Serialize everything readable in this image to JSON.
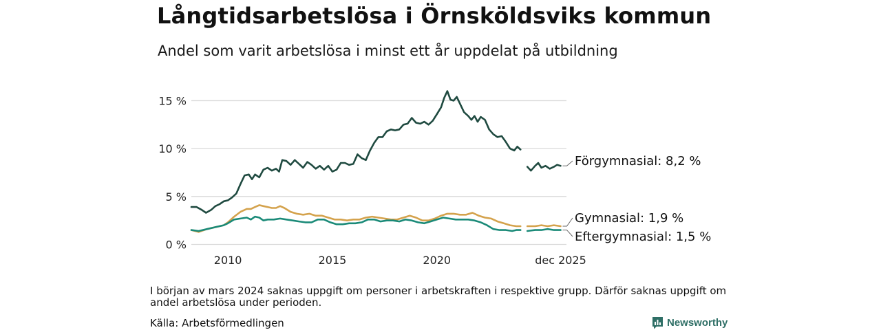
{
  "title": "Långtidsarbetslösa i Örnsköldsviks kommun",
  "subtitle": "Andel som varit arbetslösa i minst ett år uppdelat på utbildning",
  "note": "I början av mars 2024 saknas uppgift om personer i arbetskraften i respektive grupp. Därför saknas uppgift om andel arbetslösa under perioden.",
  "source": "Källa: Arbetsförmedlingen",
  "brand": "Newsworthy",
  "colors": {
    "forgymnasial": "#1f4a40",
    "gymnasial": "#d4a24c",
    "eftergymnasial": "#1a8a78",
    "grid": "#d9d9d9",
    "brand": "#2f6f66"
  },
  "chart_data": {
    "type": "line",
    "ylim": [
      0,
      16
    ],
    "xlim": [
      2008.25,
      2026.2
    ],
    "yticks": [
      0,
      5,
      10,
      15
    ],
    "ytick_labels": [
      "0 %",
      "5 %",
      "10 %",
      "15 %"
    ],
    "xticks": [
      2010,
      2015,
      2020,
      2025.92
    ],
    "xtick_labels": [
      "2010",
      "2015",
      "2020",
      "dec 2025"
    ],
    "gap": [
      2024.0,
      2024.33
    ],
    "series": [
      {
        "name": "Förgymnasial",
        "label": "Förgymnasial: 8,2 %",
        "color": "#1f4a40",
        "points": [
          [
            2008.25,
            3.9
          ],
          [
            2008.5,
            3.9
          ],
          [
            2008.75,
            3.6
          ],
          [
            2008.95,
            3.3
          ],
          [
            2009.2,
            3.6
          ],
          [
            2009.4,
            4.0
          ],
          [
            2009.6,
            4.2
          ],
          [
            2009.8,
            4.5
          ],
          [
            2010.0,
            4.6
          ],
          [
            2010.2,
            4.9
          ],
          [
            2010.4,
            5.3
          ],
          [
            2010.6,
            6.3
          ],
          [
            2010.8,
            7.2
          ],
          [
            2011.0,
            7.3
          ],
          [
            2011.15,
            6.8
          ],
          [
            2011.3,
            7.3
          ],
          [
            2011.5,
            7.0
          ],
          [
            2011.7,
            7.8
          ],
          [
            2011.9,
            8.0
          ],
          [
            2012.1,
            7.7
          ],
          [
            2012.3,
            7.9
          ],
          [
            2012.45,
            7.6
          ],
          [
            2012.6,
            8.8
          ],
          [
            2012.8,
            8.7
          ],
          [
            2013.0,
            8.3
          ],
          [
            2013.2,
            8.8
          ],
          [
            2013.4,
            8.4
          ],
          [
            2013.6,
            8.0
          ],
          [
            2013.8,
            8.6
          ],
          [
            2014.0,
            8.3
          ],
          [
            2014.2,
            7.9
          ],
          [
            2014.4,
            8.2
          ],
          [
            2014.6,
            7.8
          ],
          [
            2014.8,
            8.2
          ],
          [
            2015.0,
            7.6
          ],
          [
            2015.2,
            7.8
          ],
          [
            2015.4,
            8.5
          ],
          [
            2015.6,
            8.5
          ],
          [
            2015.8,
            8.3
          ],
          [
            2016.0,
            8.4
          ],
          [
            2016.2,
            9.4
          ],
          [
            2016.4,
            9.0
          ],
          [
            2016.6,
            8.8
          ],
          [
            2016.8,
            9.8
          ],
          [
            2017.0,
            10.6
          ],
          [
            2017.2,
            11.2
          ],
          [
            2017.4,
            11.2
          ],
          [
            2017.6,
            11.8
          ],
          [
            2017.8,
            12.0
          ],
          [
            2018.0,
            11.9
          ],
          [
            2018.2,
            12.0
          ],
          [
            2018.4,
            12.5
          ],
          [
            2018.6,
            12.6
          ],
          [
            2018.8,
            13.2
          ],
          [
            2019.0,
            12.7
          ],
          [
            2019.2,
            12.6
          ],
          [
            2019.4,
            12.8
          ],
          [
            2019.6,
            12.5
          ],
          [
            2019.8,
            12.9
          ],
          [
            2020.0,
            13.6
          ],
          [
            2020.2,
            14.3
          ],
          [
            2020.35,
            15.3
          ],
          [
            2020.5,
            16.0
          ],
          [
            2020.65,
            15.1
          ],
          [
            2020.8,
            15.0
          ],
          [
            2020.95,
            15.4
          ],
          [
            2021.1,
            14.7
          ],
          [
            2021.3,
            13.8
          ],
          [
            2021.5,
            13.4
          ],
          [
            2021.65,
            13.0
          ],
          [
            2021.8,
            13.4
          ],
          [
            2021.95,
            12.8
          ],
          [
            2022.1,
            13.3
          ],
          [
            2022.3,
            13.0
          ],
          [
            2022.5,
            12.0
          ],
          [
            2022.7,
            11.5
          ],
          [
            2022.9,
            11.2
          ],
          [
            2023.1,
            11.3
          ],
          [
            2023.3,
            10.7
          ],
          [
            2023.5,
            10.0
          ],
          [
            2023.7,
            9.8
          ],
          [
            2023.85,
            10.2
          ],
          [
            2024.0,
            9.9
          ],
          [
            2024.33,
            8.1
          ],
          [
            2024.5,
            7.7
          ],
          [
            2024.7,
            8.2
          ],
          [
            2024.85,
            8.5
          ],
          [
            2025.0,
            8.0
          ],
          [
            2025.2,
            8.2
          ],
          [
            2025.4,
            7.9
          ],
          [
            2025.6,
            8.1
          ],
          [
            2025.75,
            8.3
          ],
          [
            2025.92,
            8.2
          ]
        ]
      },
      {
        "name": "Gymnasial",
        "label": "Gymnasial: 1,9 %",
        "color": "#d4a24c",
        "points": [
          [
            2008.25,
            1.5
          ],
          [
            2008.6,
            1.3
          ],
          [
            2009.0,
            1.6
          ],
          [
            2009.4,
            1.8
          ],
          [
            2009.8,
            2.0
          ],
          [
            2010.0,
            2.3
          ],
          [
            2010.3,
            2.9
          ],
          [
            2010.6,
            3.4
          ],
          [
            2010.9,
            3.7
          ],
          [
            2011.1,
            3.7
          ],
          [
            2011.3,
            3.9
          ],
          [
            2011.5,
            4.1
          ],
          [
            2011.7,
            4.0
          ],
          [
            2011.9,
            3.9
          ],
          [
            2012.1,
            3.8
          ],
          [
            2012.3,
            3.8
          ],
          [
            2012.5,
            4.0
          ],
          [
            2012.7,
            3.8
          ],
          [
            2013.0,
            3.4
          ],
          [
            2013.3,
            3.2
          ],
          [
            2013.6,
            3.1
          ],
          [
            2013.9,
            3.2
          ],
          [
            2014.2,
            3.0
          ],
          [
            2014.5,
            3.0
          ],
          [
            2014.8,
            2.8
          ],
          [
            2015.1,
            2.6
          ],
          [
            2015.4,
            2.6
          ],
          [
            2015.7,
            2.5
          ],
          [
            2016.0,
            2.6
          ],
          [
            2016.3,
            2.6
          ],
          [
            2016.6,
            2.8
          ],
          [
            2016.9,
            2.9
          ],
          [
            2017.2,
            2.8
          ],
          [
            2017.5,
            2.7
          ],
          [
            2017.8,
            2.6
          ],
          [
            2018.1,
            2.6
          ],
          [
            2018.4,
            2.8
          ],
          [
            2018.7,
            3.0
          ],
          [
            2019.0,
            2.8
          ],
          [
            2019.3,
            2.5
          ],
          [
            2019.6,
            2.5
          ],
          [
            2019.9,
            2.7
          ],
          [
            2020.2,
            3.0
          ],
          [
            2020.5,
            3.2
          ],
          [
            2020.8,
            3.2
          ],
          [
            2021.1,
            3.1
          ],
          [
            2021.4,
            3.1
          ],
          [
            2021.7,
            3.3
          ],
          [
            2022.0,
            3.0
          ],
          [
            2022.3,
            2.8
          ],
          [
            2022.6,
            2.7
          ],
          [
            2022.9,
            2.4
          ],
          [
            2023.2,
            2.2
          ],
          [
            2023.5,
            2.0
          ],
          [
            2023.8,
            1.9
          ],
          [
            2024.0,
            1.9
          ],
          [
            2024.33,
            1.9
          ],
          [
            2024.7,
            1.9
          ],
          [
            2025.0,
            2.0
          ],
          [
            2025.3,
            1.9
          ],
          [
            2025.6,
            2.0
          ],
          [
            2025.92,
            1.9
          ]
        ]
      },
      {
        "name": "Eftergymnasial",
        "label": "Eftergymnasial: 1,5 %",
        "color": "#1a8a78",
        "points": [
          [
            2008.25,
            1.5
          ],
          [
            2008.6,
            1.4
          ],
          [
            2009.0,
            1.6
          ],
          [
            2009.4,
            1.8
          ],
          [
            2009.8,
            2.0
          ],
          [
            2010.0,
            2.2
          ],
          [
            2010.3,
            2.6
          ],
          [
            2010.6,
            2.7
          ],
          [
            2010.9,
            2.8
          ],
          [
            2011.1,
            2.6
          ],
          [
            2011.3,
            2.9
          ],
          [
            2011.5,
            2.8
          ],
          [
            2011.7,
            2.5
          ],
          [
            2011.9,
            2.6
          ],
          [
            2012.2,
            2.6
          ],
          [
            2012.5,
            2.7
          ],
          [
            2012.8,
            2.6
          ],
          [
            2013.1,
            2.5
          ],
          [
            2013.4,
            2.4
          ],
          [
            2013.7,
            2.3
          ],
          [
            2014.0,
            2.3
          ],
          [
            2014.3,
            2.6
          ],
          [
            2014.6,
            2.6
          ],
          [
            2014.9,
            2.3
          ],
          [
            2015.2,
            2.1
          ],
          [
            2015.5,
            2.1
          ],
          [
            2015.8,
            2.2
          ],
          [
            2016.1,
            2.2
          ],
          [
            2016.4,
            2.3
          ],
          [
            2016.7,
            2.6
          ],
          [
            2017.0,
            2.6
          ],
          [
            2017.3,
            2.4
          ],
          [
            2017.6,
            2.5
          ],
          [
            2017.9,
            2.5
          ],
          [
            2018.2,
            2.4
          ],
          [
            2018.5,
            2.6
          ],
          [
            2018.8,
            2.5
          ],
          [
            2019.1,
            2.3
          ],
          [
            2019.4,
            2.2
          ],
          [
            2019.7,
            2.4
          ],
          [
            2020.0,
            2.6
          ],
          [
            2020.3,
            2.8
          ],
          [
            2020.6,
            2.7
          ],
          [
            2020.9,
            2.6
          ],
          [
            2021.2,
            2.6
          ],
          [
            2021.5,
            2.6
          ],
          [
            2021.8,
            2.5
          ],
          [
            2022.1,
            2.3
          ],
          [
            2022.4,
            2.0
          ],
          [
            2022.7,
            1.6
          ],
          [
            2023.0,
            1.5
          ],
          [
            2023.3,
            1.5
          ],
          [
            2023.6,
            1.4
          ],
          [
            2023.8,
            1.5
          ],
          [
            2024.0,
            1.5
          ],
          [
            2024.33,
            1.4
          ],
          [
            2024.7,
            1.5
          ],
          [
            2025.0,
            1.5
          ],
          [
            2025.3,
            1.6
          ],
          [
            2025.6,
            1.5
          ],
          [
            2025.92,
            1.5
          ]
        ]
      }
    ]
  }
}
